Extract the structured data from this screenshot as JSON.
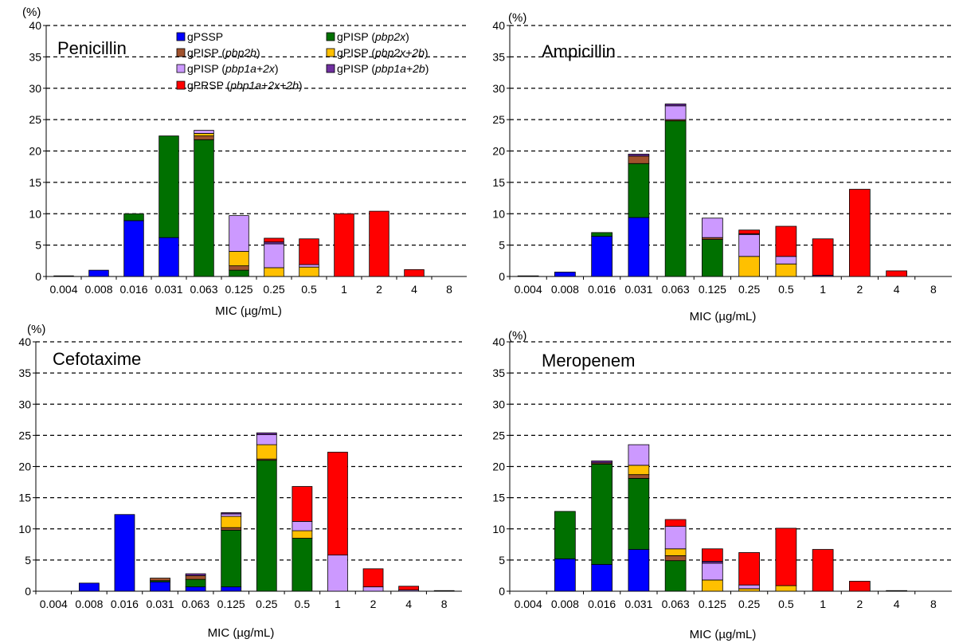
{
  "chart_data": [
    {
      "type": "bar",
      "stacked": true,
      "title": "Penicillin",
      "xlabel": "MIC (µg/mL)",
      "ylabel": "(%)",
      "ylim": [
        0,
        40
      ],
      "yticks": [
        0,
        5,
        10,
        15,
        20,
        25,
        30,
        35,
        40
      ],
      "grid": "dashed-horizontal",
      "categories": [
        "0.004",
        "0.008",
        "0.016",
        "0.031",
        "0.063",
        "0.125",
        "0.25",
        "0.5",
        "1",
        "2",
        "4",
        "8"
      ],
      "series": [
        {
          "key": "gPSSP",
          "values": [
            0.1,
            1.0,
            8.9,
            6.2,
            0,
            0,
            0,
            0,
            0,
            0,
            0,
            0
          ]
        },
        {
          "key": "gPISP_pbp2x",
          "values": [
            0,
            0,
            1.1,
            16.2,
            21.8,
            1.0,
            0,
            0,
            0,
            0,
            0,
            0
          ]
        },
        {
          "key": "gPISP_pbp2b",
          "values": [
            0,
            0,
            0,
            0,
            0.6,
            0.7,
            0,
            0,
            0,
            0,
            0,
            0
          ]
        },
        {
          "key": "gPISP_pbp2x2b",
          "values": [
            0,
            0,
            0,
            0,
            0.4,
            2.3,
            1.4,
            1.5,
            0,
            0,
            0,
            0
          ]
        },
        {
          "key": "gPISP_pbp1a2x",
          "values": [
            0,
            0,
            0,
            0,
            0.5,
            5.7,
            3.8,
            0.4,
            0,
            0,
            0,
            0
          ]
        },
        {
          "key": "gPISP_pbp1a2b",
          "values": [
            0,
            0,
            0,
            0,
            0,
            0,
            0.3,
            0,
            0,
            0,
            0,
            0
          ]
        },
        {
          "key": "gPRSP",
          "values": [
            0,
            0,
            0,
            0,
            0,
            0,
            0.6,
            4.1,
            10.0,
            10.4,
            1.1,
            0
          ]
        }
      ]
    },
    {
      "type": "bar",
      "stacked": true,
      "title": "Ampicillin",
      "xlabel": "MIC (µg/mL)",
      "ylabel": "(%)",
      "ylim": [
        0,
        40
      ],
      "yticks": [
        0,
        5,
        10,
        15,
        20,
        25,
        30,
        35,
        40
      ],
      "grid": "dashed-horizontal",
      "categories": [
        "0.004",
        "0.008",
        "0.016",
        "0.031",
        "0.063",
        "0.125",
        "0.25",
        "0.5",
        "1",
        "2",
        "4",
        "8"
      ],
      "series": [
        {
          "key": "gPSSP",
          "values": [
            0.1,
            0.7,
            6.4,
            9.4,
            0,
            0,
            0,
            0,
            0,
            0,
            0,
            0
          ]
        },
        {
          "key": "gPISP_pbp2x",
          "values": [
            0,
            0,
            0.6,
            8.6,
            24.8,
            5.9,
            0,
            0,
            0,
            0,
            0,
            0
          ]
        },
        {
          "key": "gPISP_pbp2b",
          "values": [
            0,
            0,
            0,
            1.2,
            0.2,
            0.3,
            0,
            0,
            0,
            0,
            0,
            0
          ]
        },
        {
          "key": "gPISP_pbp2x2b",
          "values": [
            0,
            0,
            0,
            0,
            0,
            0,
            3.2,
            2.0,
            0,
            0,
            0,
            0
          ]
        },
        {
          "key": "gPISP_pbp1a2x",
          "values": [
            0,
            0,
            0,
            0,
            2.2,
            3.1,
            3.5,
            1.2,
            0,
            0,
            0,
            0
          ]
        },
        {
          "key": "gPISP_pbp1a2b",
          "values": [
            0,
            0,
            0,
            0.3,
            0.3,
            0,
            0.1,
            0,
            0.2,
            0,
            0,
            0
          ]
        },
        {
          "key": "gPRSP",
          "values": [
            0,
            0,
            0,
            0,
            0,
            0,
            0.6,
            4.8,
            5.8,
            13.9,
            0.9,
            0
          ]
        }
      ]
    },
    {
      "type": "bar",
      "stacked": true,
      "title": "Cefotaxime",
      "xlabel": "MIC (µg/mL)",
      "ylabel": "(%)",
      "ylim": [
        0,
        40
      ],
      "yticks": [
        0,
        5,
        10,
        15,
        20,
        25,
        30,
        35,
        40
      ],
      "grid": "dashed-horizontal",
      "categories": [
        "0.004",
        "0.008",
        "0.016",
        "0.031",
        "0.063",
        "0.125",
        "0.25",
        "0.5",
        "1",
        "2",
        "4",
        "8"
      ],
      "series": [
        {
          "key": "gPSSP",
          "values": [
            0,
            1.3,
            12.3,
            1.5,
            0.7,
            0.7,
            0,
            0,
            0,
            0,
            0,
            0
          ]
        },
        {
          "key": "gPISP_pbp2x",
          "values": [
            0,
            0,
            0,
            0.2,
            1.2,
            9.1,
            21.0,
            8.5,
            0,
            0,
            0,
            0
          ]
        },
        {
          "key": "gPISP_pbp2b",
          "values": [
            0,
            0,
            0,
            0.4,
            0.6,
            0.4,
            0.2,
            0,
            0,
            0,
            0,
            0
          ]
        },
        {
          "key": "gPISP_pbp2x2b",
          "values": [
            0,
            0,
            0,
            0,
            0,
            1.8,
            2.3,
            1.2,
            0,
            0,
            0,
            0
          ]
        },
        {
          "key": "gPISP_pbp1a2x",
          "values": [
            0,
            0,
            0,
            0,
            0,
            0.4,
            1.6,
            1.5,
            5.8,
            0.7,
            0.2,
            0
          ]
        },
        {
          "key": "gPISP_pbp1a2b",
          "values": [
            0,
            0,
            0,
            0,
            0.3,
            0.2,
            0.3,
            0,
            0,
            0,
            0,
            0
          ]
        },
        {
          "key": "gPRSP",
          "values": [
            0,
            0,
            0,
            0,
            0,
            0,
            0,
            5.6,
            16.5,
            2.9,
            0.6,
            0.1
          ]
        }
      ]
    },
    {
      "type": "bar",
      "stacked": true,
      "title": "Meropenem",
      "xlabel": "MIC (µg/mL)",
      "ylabel": "(%)",
      "ylim": [
        0,
        40
      ],
      "yticks": [
        0,
        5,
        10,
        15,
        20,
        25,
        30,
        35,
        40
      ],
      "grid": "dashed-horizontal",
      "categories": [
        "0.004",
        "0.008",
        "0.016",
        "0.031",
        "0.063",
        "0.125",
        "0.25",
        "0.5",
        "1",
        "2",
        "4",
        "8"
      ],
      "series": [
        {
          "key": "gPSSP",
          "values": [
            0,
            5.2,
            4.3,
            6.7,
            0,
            0,
            0,
            0,
            0,
            0,
            0,
            0
          ]
        },
        {
          "key": "gPISP_pbp2x",
          "values": [
            0,
            7.6,
            16.1,
            11.4,
            4.9,
            0,
            0,
            0,
            0,
            0,
            0,
            0
          ]
        },
        {
          "key": "gPISP_pbp2b",
          "values": [
            0,
            0,
            0.2,
            0.6,
            0.8,
            0,
            0,
            0,
            0,
            0,
            0,
            0
          ]
        },
        {
          "key": "gPISP_pbp2x2b",
          "values": [
            0,
            0,
            0,
            1.5,
            1.1,
            1.8,
            0.4,
            0.9,
            0,
            0,
            0,
            0
          ]
        },
        {
          "key": "gPISP_pbp1a2x",
          "values": [
            0,
            0,
            0,
            3.3,
            3.6,
            2.7,
            0.6,
            0,
            0,
            0,
            0,
            0
          ]
        },
        {
          "key": "gPISP_pbp1a2b",
          "values": [
            0,
            0,
            0.3,
            0,
            0,
            0.3,
            0,
            0,
            0,
            0,
            0,
            0
          ]
        },
        {
          "key": "gPRSP",
          "values": [
            0,
            0,
            0,
            0,
            1.1,
            2.0,
            5.2,
            9.2,
            6.7,
            1.6,
            0.1,
            0
          ]
        }
      ]
    }
  ],
  "legend": {
    "placement": "top-right of first panel",
    "items": [
      {
        "key": "gPSSP",
        "prefix": "gPSSP",
        "gene": "",
        "color": "#0000ff"
      },
      {
        "key": "gPISP_pbp2x",
        "prefix": "gPISP (",
        "gene": "pbp2x",
        "suffix": ")",
        "color": "#007000"
      },
      {
        "key": "gPISP_pbp2b",
        "prefix": "gPISP (",
        "gene": "pbp2b",
        "suffix": ")",
        "color": "#a0522d"
      },
      {
        "key": "gPISP_pbp2x2b",
        "prefix": "gPISP (",
        "gene": "pbp2x+2b",
        "suffix": ")",
        "color": "#ffc000"
      },
      {
        "key": "gPISP_pbp1a2x",
        "prefix": "gPISP (",
        "gene": "pbp1a+2x",
        "suffix": ")",
        "color": "#cc99ff"
      },
      {
        "key": "gPISP_pbp1a2b",
        "prefix": "gPISP (",
        "gene": "pbp1a+2b",
        "suffix": ")",
        "color": "#7030a0"
      },
      {
        "key": "gPRSP",
        "prefix": "gPRSP (",
        "gene": "pbp1a+2x+2b",
        "suffix": ")",
        "color": "#ff0000"
      }
    ]
  }
}
